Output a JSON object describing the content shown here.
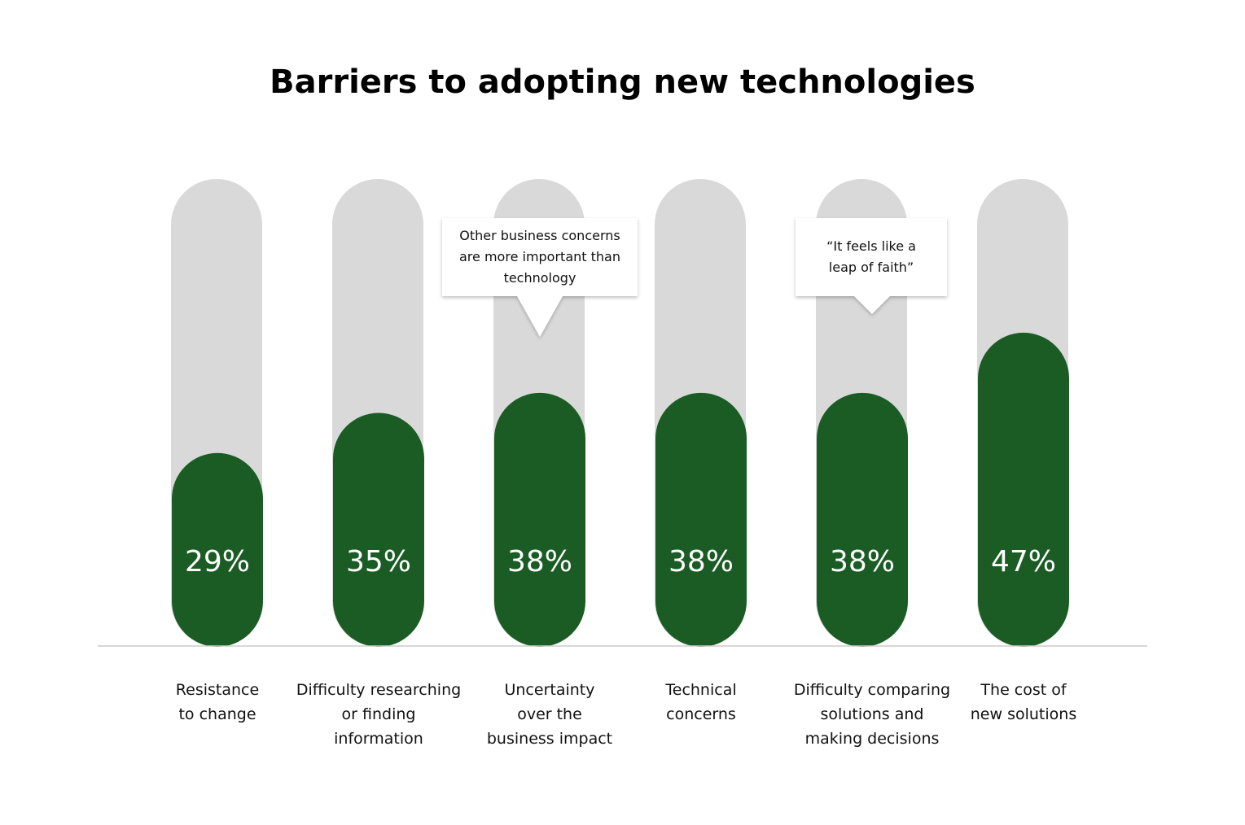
{
  "chart_data": {
    "type": "bar",
    "title": "Barriers to adopting new technologies",
    "categories": [
      "Resistance\nto change",
      "Difficulty researching\nor finding\ninformation",
      "Uncertainty\nover the\nbusiness impact",
      "Technical\nconcerns",
      "Difficulty comparing\nsolutions and\nmaking decisions",
      "The cost of\nnew solutions"
    ],
    "values": [
      29,
      35,
      38,
      38,
      38,
      47
    ],
    "value_labels": [
      "29%",
      "35%",
      "38%",
      "38%",
      "38%",
      "47%"
    ],
    "color": "#1a5c24",
    "track_color": "#d9d9d9",
    "ylim": [
      0,
      70
    ],
    "annotations": [
      "Other business concerns\nare more important than\ntechnology",
      "“It feels like a\nleap of faith”"
    ]
  }
}
